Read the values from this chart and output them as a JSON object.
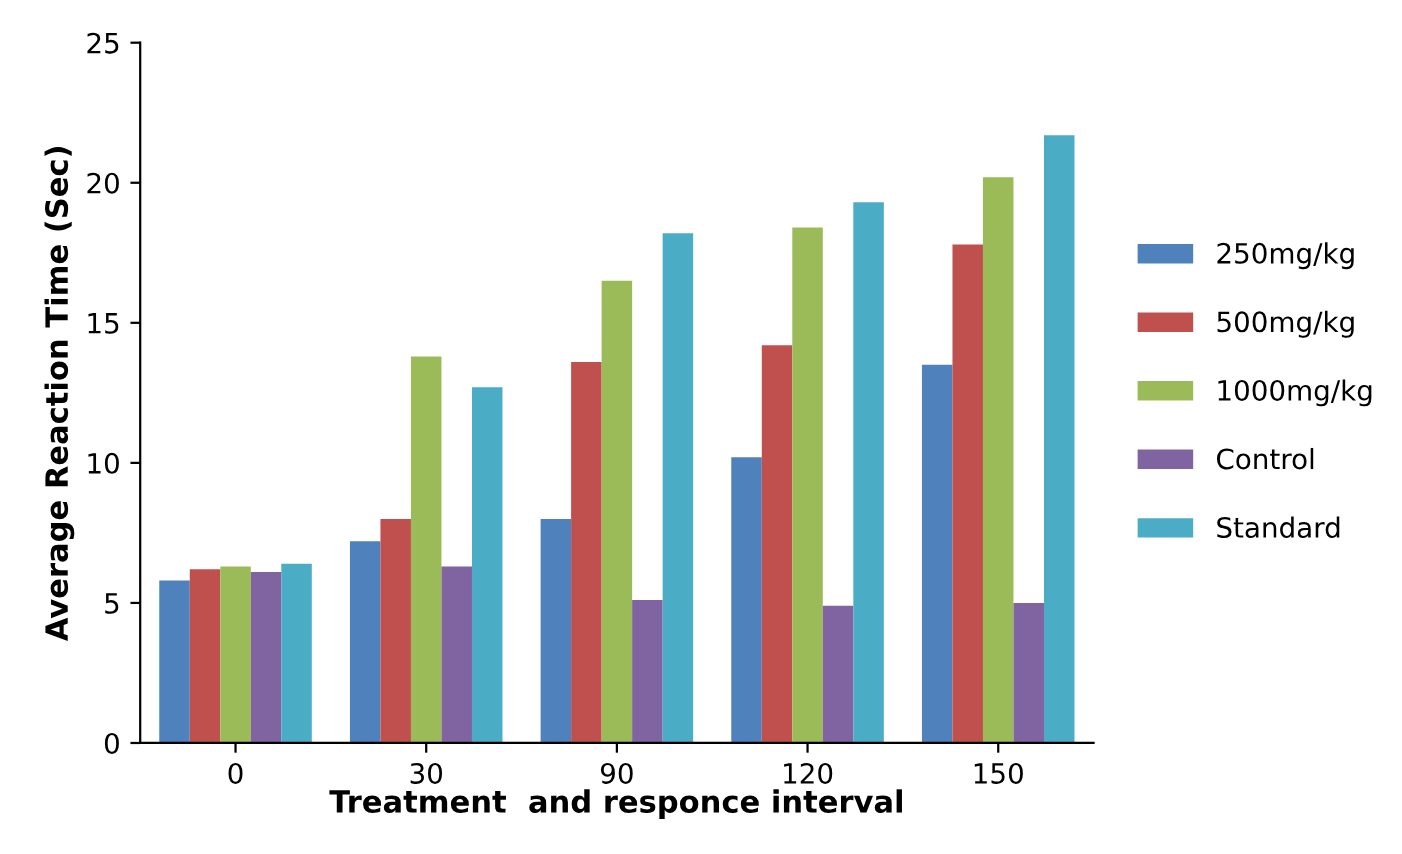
{
  "chart_data": {
    "type": "bar",
    "xlabel": "Treatment  and responce interval",
    "ylabel": "Average Reaction Time (Sec)",
    "categories": [
      "0",
      "30",
      "90",
      "120",
      "150"
    ],
    "series": [
      {
        "name": "250mg/kg",
        "color": "#4f81bd",
        "values": [
          5.8,
          7.2,
          8.0,
          10.2,
          13.5
        ]
      },
      {
        "name": "500mg/kg",
        "color": "#c0504d",
        "values": [
          6.2,
          8.0,
          13.6,
          14.2,
          17.8
        ]
      },
      {
        "name": "1000mg/kg",
        "color": "#9bbb59",
        "values": [
          6.3,
          13.8,
          16.5,
          18.4,
          20.2
        ]
      },
      {
        "name": "Control",
        "color": "#8064a2",
        "values": [
          6.1,
          6.3,
          5.1,
          4.9,
          5.0
        ]
      },
      {
        "name": "Standard",
        "color": "#4bacc6",
        "values": [
          6.4,
          12.7,
          18.2,
          19.3,
          21.7
        ]
      }
    ],
    "ylim": [
      0,
      25
    ],
    "yticks": [
      0,
      5,
      10,
      15,
      20,
      25
    ],
    "grid": false,
    "legend": "right"
  }
}
